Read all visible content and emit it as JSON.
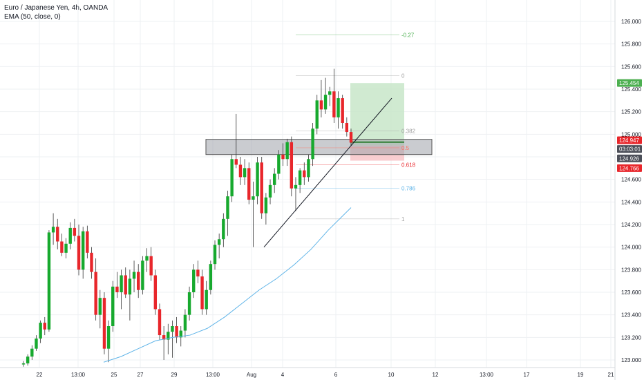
{
  "legend": {
    "symbol": "Euro / Japanese Yen, 4h, OANDA",
    "indicator": "EMA (50, close, 0)"
  },
  "colors": {
    "up": "#26a69a",
    "up_fill": "#17a92e",
    "down": "#e8262b",
    "ema": "#5fb4e8",
    "grid": "#eef0f3",
    "zone": "#9ea3a9",
    "profit": "#c8e6c9",
    "loss": "#f8c6c9",
    "current_tag": "#e8262b",
    "countdown_tag": "#4c4f59",
    "close_tag": "#4c4f59",
    "tp_tag": "#4caf50",
    "sl_tag": "#e8262b"
  },
  "chart_data": {
    "type": "candlestick",
    "y_axis": {
      "ticks": [
        "123.000",
        "123.200",
        "123.400",
        "123.600",
        "123.800",
        "124.000",
        "124.200",
        "124.400",
        "124.600",
        "124.800",
        "125.000",
        "125.200",
        "125.400",
        "125.600",
        "125.800",
        "126.000"
      ],
      "range": [
        122.96,
        126.1
      ]
    },
    "x_axis": {
      "ticks": [
        "22",
        "13:00",
        "25",
        "27",
        "29",
        "13:00",
        "Aug",
        "4",
        "6",
        "10",
        "12",
        "13:00",
        "17",
        "19",
        "21"
      ]
    },
    "price_tags": {
      "target": "125.454",
      "current": "124.947",
      "countdown": "03:03:01",
      "close": "124.926",
      "stop": "124.766"
    },
    "fib_levels": [
      {
        "label": "-0.27",
        "price": 125.88,
        "color": "#4caf50"
      },
      {
        "label": "0",
        "price": 125.52,
        "color": "#9e9e9e"
      },
      {
        "label": "0.382",
        "price": 125.03,
        "color": "#9e9e9e"
      },
      {
        "label": "0.5",
        "price": 124.88,
        "color": "#ff6f61"
      },
      {
        "label": "0.618",
        "price": 124.73,
        "color": "#e8262b"
      },
      {
        "label": "0.786",
        "price": 124.52,
        "color": "#5fb4e8"
      },
      {
        "label": "1",
        "price": 124.25,
        "color": "#9e9e9e"
      }
    ],
    "zone": {
      "top": 124.955,
      "bottom": 124.82
    },
    "position": {
      "entry": 124.9,
      "target": 125.454,
      "stop": 124.766
    },
    "trendline": [
      [
        124.0
      ],
      [
        125.32
      ]
    ],
    "candles": [
      [
        122.96,
        122.99,
        122.94,
        122.97
      ],
      [
        122.97,
        123.05,
        122.95,
        123.03
      ],
      [
        123.03,
        123.13,
        123.0,
        123.1
      ],
      [
        123.1,
        123.22,
        123.08,
        123.19
      ],
      [
        123.19,
        123.35,
        123.15,
        123.33
      ],
      [
        123.33,
        123.38,
        123.22,
        123.27
      ],
      [
        123.27,
        124.15,
        123.25,
        124.13
      ],
      [
        124.13,
        124.3,
        124.02,
        124.18
      ],
      [
        124.18,
        124.25,
        123.98,
        124.05
      ],
      [
        124.05,
        124.12,
        123.92,
        123.95
      ],
      [
        123.95,
        124.08,
        123.9,
        124.03
      ],
      [
        124.03,
        124.22,
        123.98,
        124.17
      ],
      [
        124.17,
        124.25,
        124.05,
        124.1
      ],
      [
        124.1,
        124.2,
        123.75,
        123.8
      ],
      [
        123.8,
        124.18,
        123.72,
        124.14
      ],
      [
        124.14,
        124.19,
        123.9,
        123.95
      ],
      [
        123.95,
        124.0,
        123.72,
        123.78
      ],
      [
        123.78,
        123.9,
        123.35,
        123.4
      ],
      [
        123.4,
        123.62,
        123.28,
        123.55
      ],
      [
        123.55,
        123.6,
        123.05,
        123.1
      ],
      [
        123.1,
        123.35,
        122.98,
        123.3
      ],
      [
        123.3,
        123.7,
        123.25,
        123.65
      ],
      [
        123.65,
        123.78,
        123.55,
        123.6
      ],
      [
        123.6,
        123.8,
        123.45,
        123.75
      ],
      [
        123.75,
        123.82,
        123.55,
        123.58
      ],
      [
        123.58,
        123.8,
        123.35,
        123.72
      ],
      [
        123.72,
        123.88,
        123.6,
        123.78
      ],
      [
        123.78,
        123.85,
        123.55,
        123.62
      ],
      [
        123.62,
        123.92,
        123.58,
        123.88
      ],
      [
        123.88,
        123.99,
        123.78,
        123.92
      ],
      [
        123.92,
        124.0,
        123.7,
        123.75
      ],
      [
        123.75,
        123.8,
        123.4,
        123.45
      ],
      [
        123.45,
        123.5,
        123.18,
        123.22
      ],
      [
        123.22,
        123.3,
        123.0,
        123.18
      ],
      [
        123.18,
        123.32,
        123.05,
        123.25
      ],
      [
        123.25,
        123.35,
        123.02,
        123.3
      ],
      [
        123.3,
        123.38,
        123.15,
        123.2
      ],
      [
        123.2,
        123.3,
        123.12,
        123.26
      ],
      [
        123.26,
        123.45,
        123.2,
        123.4
      ],
      [
        123.4,
        123.65,
        123.35,
        123.6
      ],
      [
        123.6,
        123.85,
        123.55,
        123.8
      ],
      [
        123.8,
        123.88,
        123.68,
        123.74
      ],
      [
        123.74,
        123.8,
        123.4,
        123.45
      ],
      [
        123.45,
        123.7,
        123.4,
        123.62
      ],
      [
        123.62,
        123.88,
        123.58,
        123.85
      ],
      [
        123.85,
        124.06,
        123.8,
        124.02
      ],
      [
        124.02,
        124.12,
        123.9,
        124.07
      ],
      [
        124.07,
        124.3,
        124.0,
        124.25
      ],
      [
        124.25,
        124.5,
        124.1,
        124.45
      ],
      [
        124.45,
        124.82,
        124.4,
        124.78
      ],
      [
        124.78,
        125.18,
        124.7,
        124.73
      ],
      [
        124.73,
        124.8,
        124.55,
        124.62
      ],
      [
        124.62,
        124.78,
        124.55,
        124.7
      ],
      [
        124.7,
        124.75,
        124.38,
        124.42
      ],
      [
        124.42,
        124.58,
        124.0,
        124.45
      ],
      [
        124.45,
        124.8,
        124.38,
        124.75
      ],
      [
        124.75,
        124.8,
        124.25,
        124.3
      ],
      [
        124.3,
        124.48,
        124.2,
        124.44
      ],
      [
        124.44,
        124.6,
        124.38,
        124.55
      ],
      [
        124.55,
        124.7,
        124.48,
        124.65
      ],
      [
        124.65,
        124.86,
        124.6,
        124.82
      ],
      [
        124.82,
        124.92,
        124.72,
        124.78
      ],
      [
        124.78,
        124.96,
        124.72,
        124.93
      ],
      [
        124.93,
        124.98,
        124.45,
        124.52
      ],
      [
        124.52,
        124.62,
        124.32,
        124.55
      ],
      [
        124.55,
        124.7,
        124.48,
        124.68
      ],
      [
        124.68,
        124.75,
        124.55,
        124.62
      ],
      [
        124.62,
        124.82,
        124.58,
        124.78
      ],
      [
        124.78,
        125.1,
        124.72,
        125.05
      ],
      [
        125.05,
        125.35,
        125.0,
        125.3
      ],
      [
        125.3,
        125.48,
        125.15,
        125.22
      ],
      [
        125.22,
        125.5,
        125.18,
        125.35
      ],
      [
        125.35,
        125.42,
        125.25,
        125.38
      ],
      [
        125.38,
        125.58,
        125.1,
        125.15
      ],
      [
        125.15,
        125.38,
        125.05,
        125.32
      ],
      [
        125.32,
        125.35,
        125.05,
        125.1
      ],
      [
        125.1,
        125.15,
        124.98,
        125.02
      ],
      [
        125.02,
        125.05,
        124.9,
        124.926
      ]
    ],
    "ema": [
      [
        123.2,
        122.98
      ],
      [
        123.28,
        123.03
      ],
      [
        123.36,
        123.1
      ],
      [
        123.45,
        123.17
      ],
      [
        123.53,
        123.2
      ],
      [
        123.62,
        123.22
      ],
      [
        123.7,
        123.28
      ],
      [
        123.78,
        123.38
      ],
      [
        123.86,
        123.5
      ],
      [
        123.95,
        123.62
      ],
      [
        124.03,
        123.72
      ],
      [
        124.12,
        123.84
      ],
      [
        124.2,
        123.98
      ],
      [
        124.28,
        124.15
      ],
      [
        124.35,
        124.35
      ]
    ]
  }
}
